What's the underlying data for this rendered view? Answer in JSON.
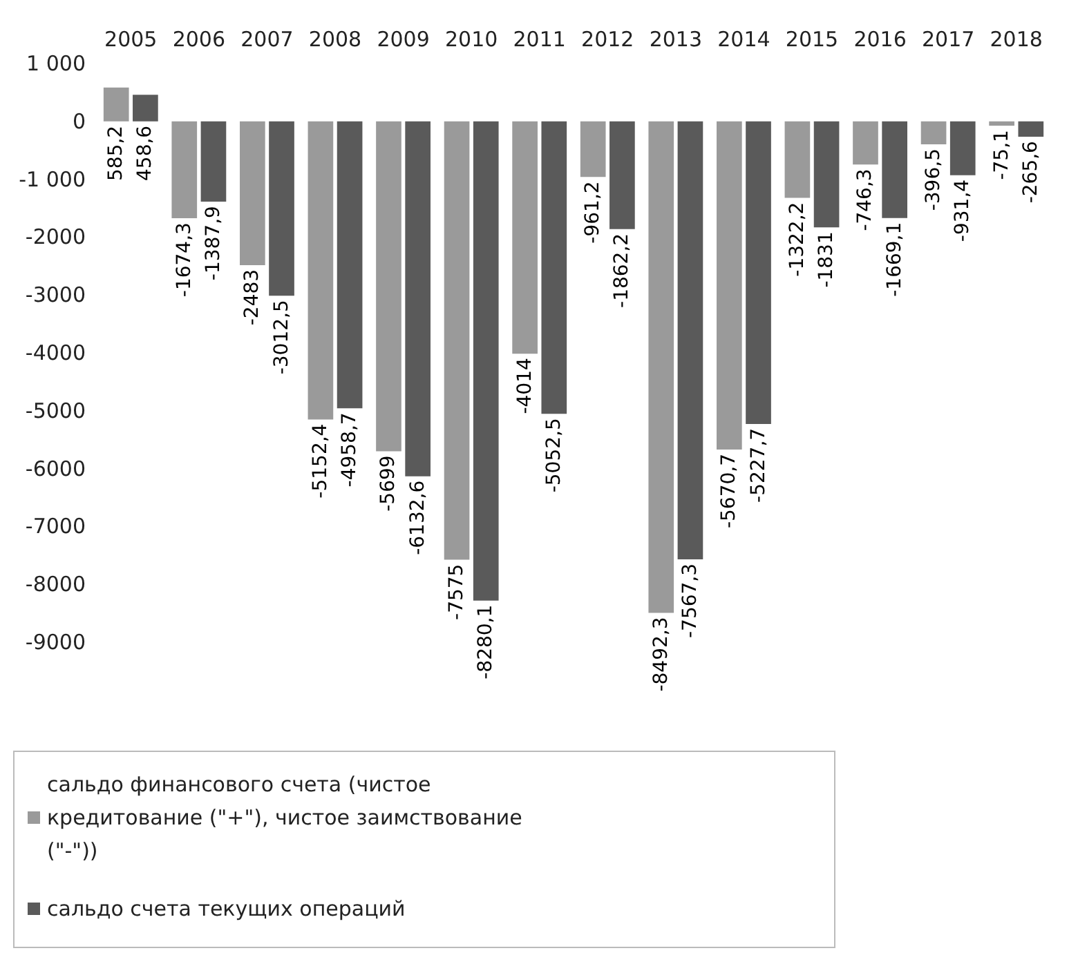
{
  "chart_data": {
    "type": "bar",
    "categories": [
      "2005",
      "2006",
      "2007",
      "2008",
      "2009",
      "2010",
      "2011",
      "2012",
      "2013",
      "2014",
      "2015",
      "2016",
      "2017",
      "2018"
    ],
    "series": [
      {
        "name": "сальдо финансового счета (чистое кредитование (\"+\"), чистое заимствование (\"-\"))",
        "color": "#9a9a9a",
        "values": [
          585.2,
          -1674.3,
          -2483,
          -5152.4,
          -5699,
          -7575,
          -4014,
          -961.2,
          -8492.3,
          -5670.7,
          -1322.2,
          -746.3,
          -396.5,
          -75.1
        ],
        "value_labels": [
          "585,2",
          "-1674,3",
          "-2483",
          "-5152,4",
          "-5699",
          "-7575",
          "-4014",
          "-961,2",
          "-8492,3",
          "-5670,7",
          "-1322,2",
          "-746,3",
          "-396,5",
          "-75,1"
        ]
      },
      {
        "name": "сальдо счета текущих операций",
        "color": "#5a5a5a",
        "values": [
          458.6,
          -1387.9,
          -3012.5,
          -4958.7,
          -6132.6,
          -8280.1,
          -5052.5,
          -1862.2,
          -7567.3,
          -5227.7,
          -1831,
          -1669.1,
          -931.4,
          -265.6
        ],
        "value_labels": [
          "458,6",
          "-1387,9",
          "-3012,5",
          "-4958,7",
          "-6132,6",
          "-8280,1",
          "-5052,5",
          "-1862,2",
          "-7567,3",
          "-5227,7",
          "-1831",
          "-1669,1",
          "-931,4",
          "-265,6"
        ]
      }
    ],
    "ylim": [
      -9000,
      1000
    ],
    "yticks": [
      {
        "value": 1000,
        "label": "1 000"
      },
      0,
      {
        "value": -1000,
        "label": "-1 000"
      },
      -2000,
      -3000,
      -4000,
      -5000,
      -6000,
      -7000,
      -8000,
      -9000
    ],
    "grid": false,
    "legend": "bottom"
  }
}
